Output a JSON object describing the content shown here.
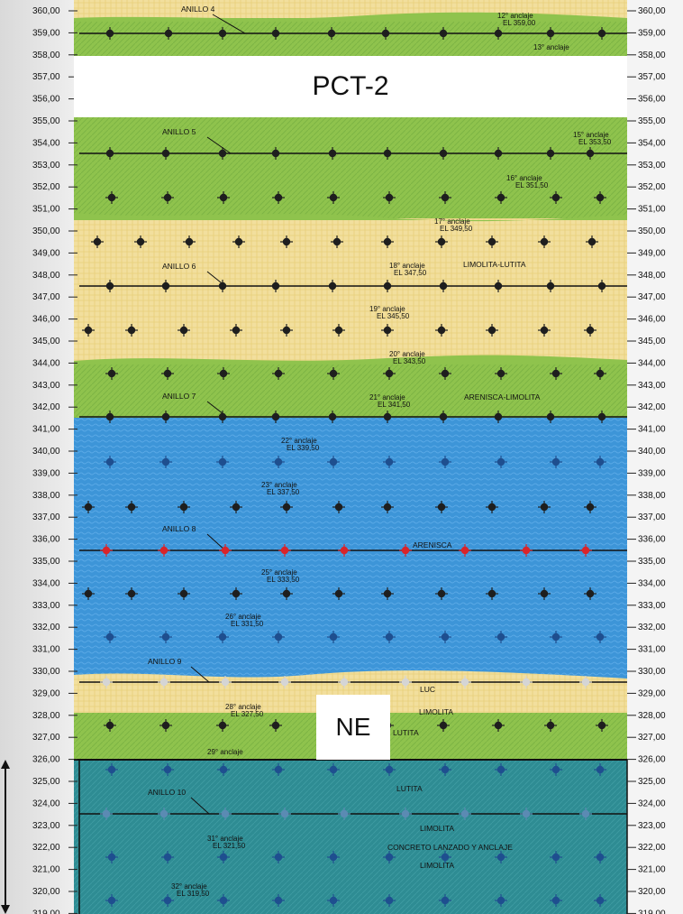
{
  "title": "PCT-2",
  "direction_label": "NE",
  "elevations": [
    "360,00",
    "359,00",
    "358,00",
    "357,00",
    "356,00",
    "355,00",
    "354,00",
    "353,00",
    "352,00",
    "351,00",
    "350,00",
    "349,00",
    "348,00",
    "347,00",
    "346,00",
    "345,00",
    "344,00",
    "343,00",
    "342,00",
    "341,00",
    "340,00",
    "339,00",
    "338,00",
    "337,00",
    "336,00",
    "335,00",
    "334,00",
    "333,00",
    "332,00",
    "331,00",
    "330,00",
    "329,00",
    "328,00",
    "327,00",
    "326,00",
    "325,00",
    "324,00",
    "323,00",
    "322,00",
    "321,00",
    "320,00",
    "319,00"
  ],
  "rings": [
    {
      "label": "ANILLO 4"
    },
    {
      "label": "ANILLO 5"
    },
    {
      "label": "ANILLO 6"
    },
    {
      "label": "ANILLO 7"
    },
    {
      "label": "ANILLO 8"
    },
    {
      "label": "ANILLO 9"
    },
    {
      "label": "ANILLO 10"
    }
  ],
  "anchors": [
    {
      "name": "12° anclaje",
      "el": "EL 359,00"
    },
    {
      "name": "13° anclaje",
      "el": ""
    },
    {
      "name": "15° anclaje",
      "el": "EL 353,50"
    },
    {
      "name": "16° anclaje",
      "el": "EL 351,50"
    },
    {
      "name": "17° anclaje",
      "el": "EL 349,50"
    },
    {
      "name": "18° anclaje",
      "el": "EL 347,50"
    },
    {
      "name": "19° anclaje",
      "el": "EL 345,50"
    },
    {
      "name": "20° anclaje",
      "el": "EL 343,50"
    },
    {
      "name": "21° anclaje",
      "el": "EL 341,50"
    },
    {
      "name": "22° anclaje",
      "el": "EL 339,50"
    },
    {
      "name": "23° anclaje",
      "el": "EL 337,50"
    },
    {
      "name": "25° anclaje",
      "el": "EL 333,50"
    },
    {
      "name": "26° anclaje",
      "el": "EL 331,50"
    },
    {
      "name": "28° anclaje",
      "el": "EL 327,50"
    },
    {
      "name": "29° anclaje",
      "el": ""
    },
    {
      "name": "31° anclaje",
      "el": "EL 321,50"
    },
    {
      "name": "32° anclaje",
      "el": "EL 319,50"
    }
  ],
  "labels": {
    "limolita_lutita": "LIMOLITA-LUTITA",
    "arenisca_limolita": "ARENISCA-LIMOLITA",
    "arenisca": "ARENISCA",
    "luc": "LUC",
    "limolita": "LIMOLITA",
    "lutita": "LUTITA",
    "concreto": "CONCRETO LANZADO Y ANCLAJE"
  },
  "colors": {
    "green": "#8fc34d",
    "sand": "#f2df9d",
    "blue": "#3d95d8",
    "teal": "#2e8c93",
    "bolt": "#1f1f1f",
    "bolt_red": "#d9242b"
  }
}
